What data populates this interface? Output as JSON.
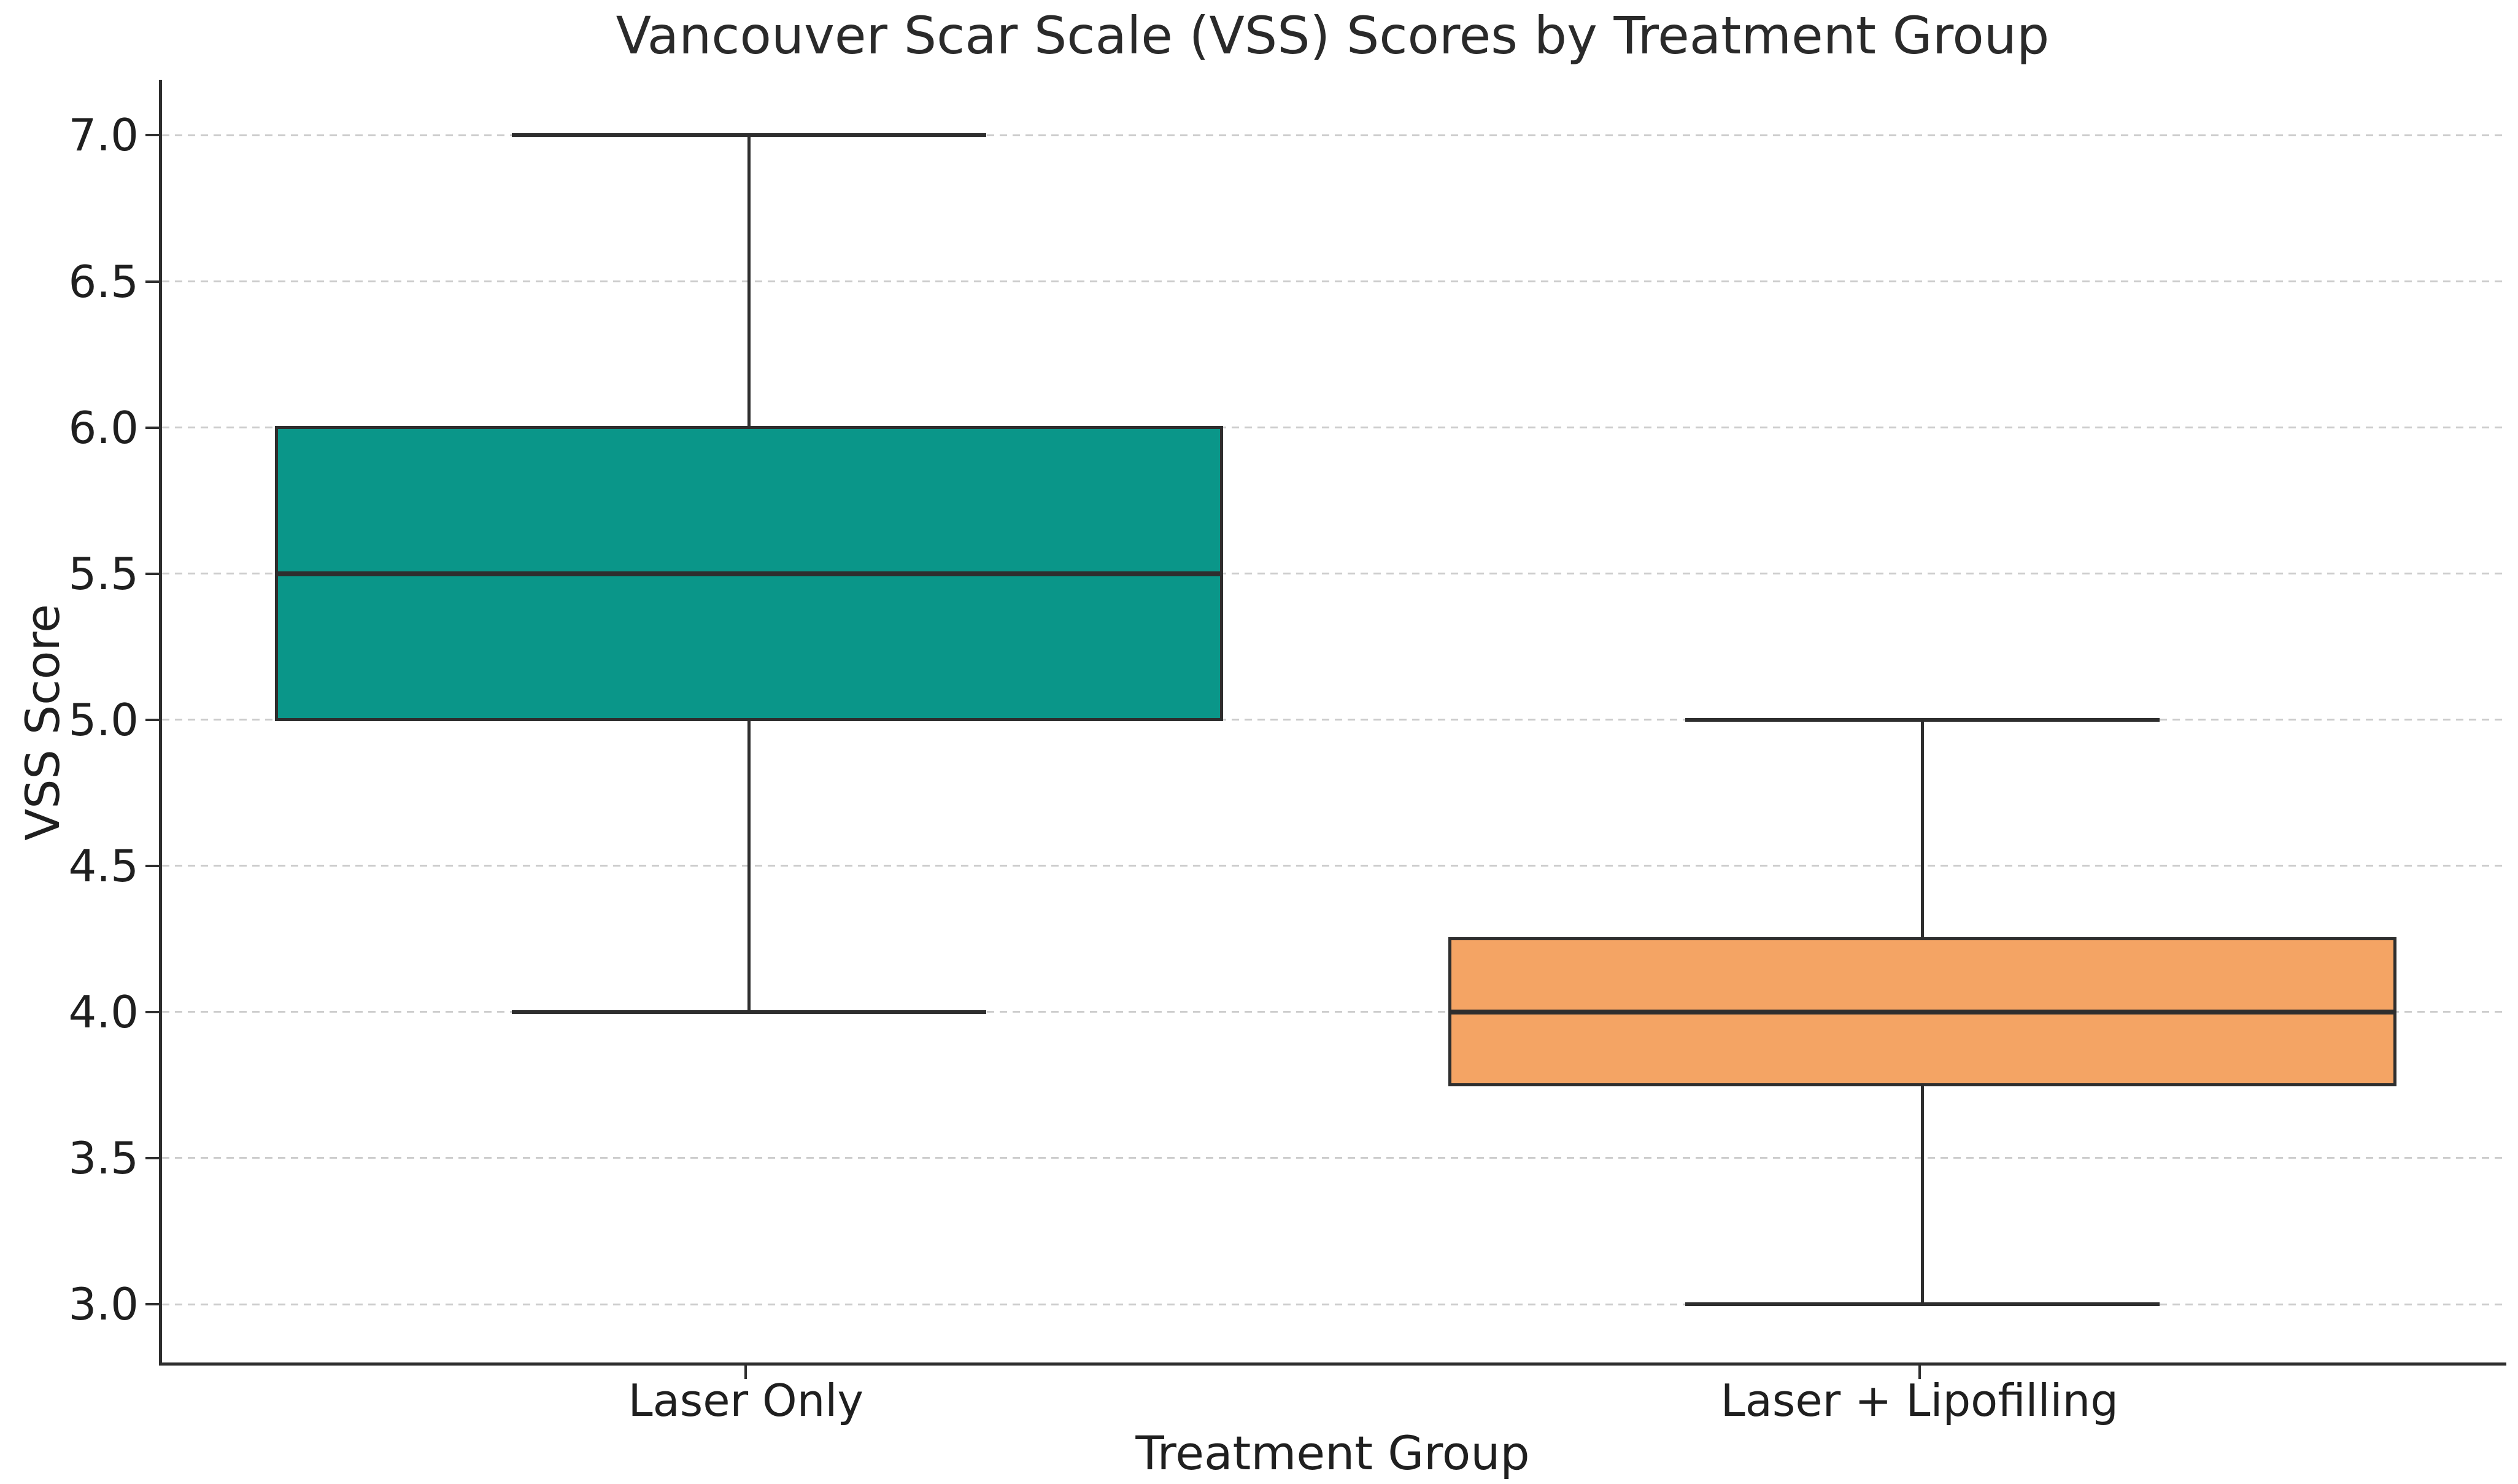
{
  "page": {
    "background_color": "#ffffff"
  },
  "chart_data": {
    "type": "boxplot",
    "title": "Vancouver Scar Scale (VSS) Scores by Treatment Group",
    "xlabel": "Treatment Group",
    "ylabel": "VSS Score",
    "categories": [
      "Laser Only",
      "Laser + Lipofilling"
    ],
    "ylim": [
      2.79,
      7.19
    ],
    "yticks": [
      3.0,
      3.5,
      4.0,
      4.5,
      5.0,
      5.5,
      6.0,
      6.5,
      7.0
    ],
    "ytick_labels": [
      "3.0",
      "3.5",
      "4.0",
      "4.5",
      "5.0",
      "5.5",
      "6.0",
      "6.5",
      "7.0"
    ],
    "grid": {
      "axis": "y",
      "style": "dashed",
      "color": "#cccccc"
    },
    "legend": "none",
    "series": [
      {
        "name": "Laser Only",
        "whisker_low": 4.0,
        "q1": 5.0,
        "median": 5.5,
        "q3": 6.0,
        "whisker_high": 7.0,
        "fill_color": "#0a9689"
      },
      {
        "name": "Laser + Lipofilling",
        "whisker_low": 3.0,
        "q1": 3.75,
        "median": 4.0,
        "q3": 4.25,
        "whisker_high": 5.0,
        "fill_color": "#f4a464"
      }
    ],
    "style": {
      "edge_color": "#2e2e2e",
      "text_color": "#1f1f1f",
      "grid_color": "#cccccc",
      "box_width_fraction": 0.808,
      "cap_width_fraction": 0.404
    }
  }
}
